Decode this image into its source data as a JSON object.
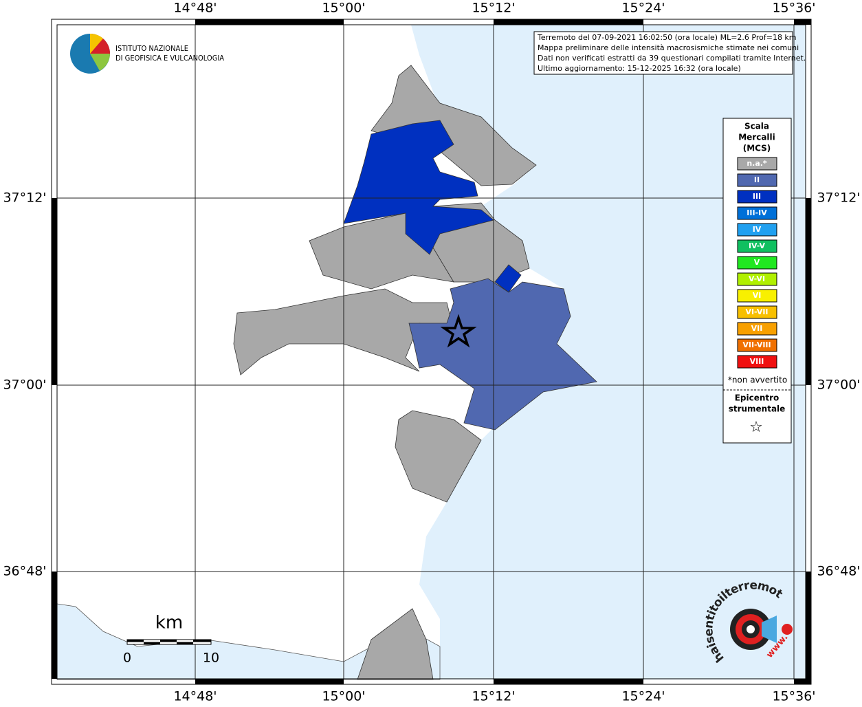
{
  "map": {
    "lon_labels": [
      "14°48'",
      "15°00'",
      "15°12'",
      "15°24'",
      "15°36'"
    ],
    "lat_labels": [
      "37°12'",
      "37°00'",
      "36°48'"
    ],
    "institute": [
      "ISTITUTO NAZIONALE",
      "DI GEOFISICA E VULCANOLOGIA"
    ],
    "info": [
      "Terremoto del 07-09-2021 16:02:50 (ora locale) ML=2.6 Prof=18 km",
      "Mappa preliminare delle intensità macrosismiche stimate nei comuni",
      "Dati non verificati estratti da 39 questionari compilati tramite Internet.",
      "Ultimo aggiornamento: 15-12-2025 16:32 (ora locale)"
    ],
    "legend": {
      "title": [
        "Scala",
        "Mercalli",
        "(MCS)"
      ],
      "items": [
        {
          "label": "n.a.*",
          "color": "#a8a8a8"
        },
        {
          "label": "II",
          "color": "#5068b0"
        },
        {
          "label": "III",
          "color": "#0030c0"
        },
        {
          "label": "III-IV",
          "color": "#0070d8"
        },
        {
          "label": "IV",
          "color": "#20a0f0"
        },
        {
          "label": "IV-V",
          "color": "#10c060"
        },
        {
          "label": "V",
          "color": "#20e820"
        },
        {
          "label": "V-VI",
          "color": "#b0f000"
        },
        {
          "label": "VI",
          "color": "#f8f000"
        },
        {
          "label": "VI-VII",
          "color": "#f8c000"
        },
        {
          "label": "VII",
          "color": "#f8a000"
        },
        {
          "label": "VII-VIII",
          "color": "#f07000"
        },
        {
          "label": "VIII",
          "color": "#f01010"
        }
      ],
      "note": "*non avvertito",
      "epicenter": [
        "Epicentro",
        "strumentale"
      ],
      "star": "☆"
    },
    "scale": {
      "unit": "km",
      "labels": [
        "0",
        "10"
      ]
    },
    "logo": {
      "text": "haisentitoilterremoto.it",
      "www": "www."
    }
  }
}
